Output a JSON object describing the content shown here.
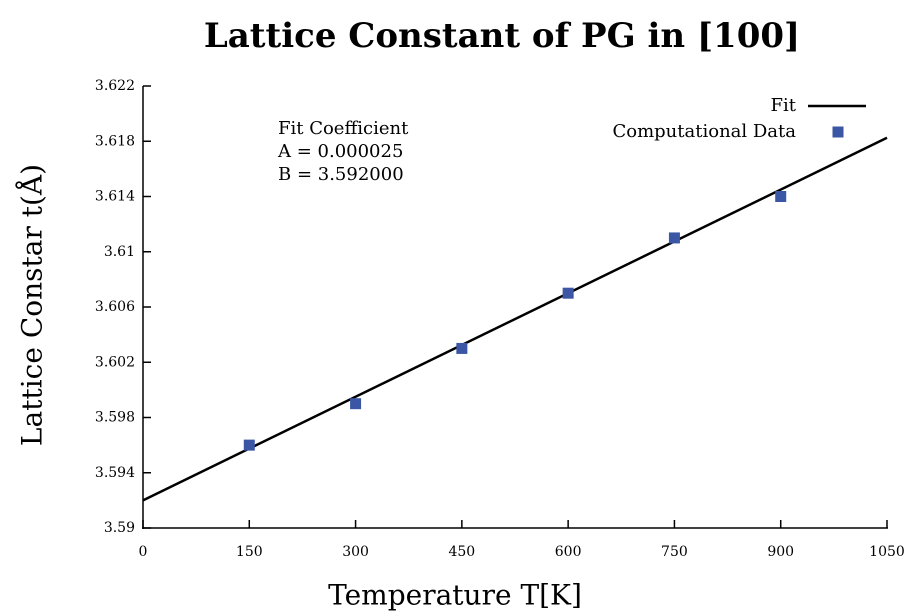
{
  "chart_data": {
    "type": "scatter",
    "title": "Lattice Constant of PG in [100]",
    "xlabel": "Temperature T[K]",
    "ylabel": "Lattice Constar t(Å)",
    "annotations": [
      "Fit Coefficient",
      "A = 0.000025",
      "B = 3.592000"
    ],
    "xlim": [
      0,
      1050
    ],
    "xticks": [
      0,
      150,
      300,
      450,
      600,
      750,
      900,
      1050
    ],
    "ylim": [
      3.59,
      3.622
    ],
    "yticks": [
      3.59,
      3.594,
      3.598,
      3.602,
      3.606,
      3.61,
      3.614,
      3.618,
      3.622
    ],
    "legend": "upper right",
    "series": [
      {
        "name": "Fit",
        "type": "line",
        "color": "#000000",
        "x": [
          0,
          1050
        ],
        "values": [
          3.592,
          3.61825
        ]
      },
      {
        "name": "Computational Data",
        "type": "scatter",
        "color": "#3a56a5",
        "x": [
          150,
          300,
          450,
          600,
          750,
          900
        ],
        "values": [
          3.596,
          3.599,
          3.603,
          3.607,
          3.611,
          3.614
        ]
      }
    ]
  }
}
